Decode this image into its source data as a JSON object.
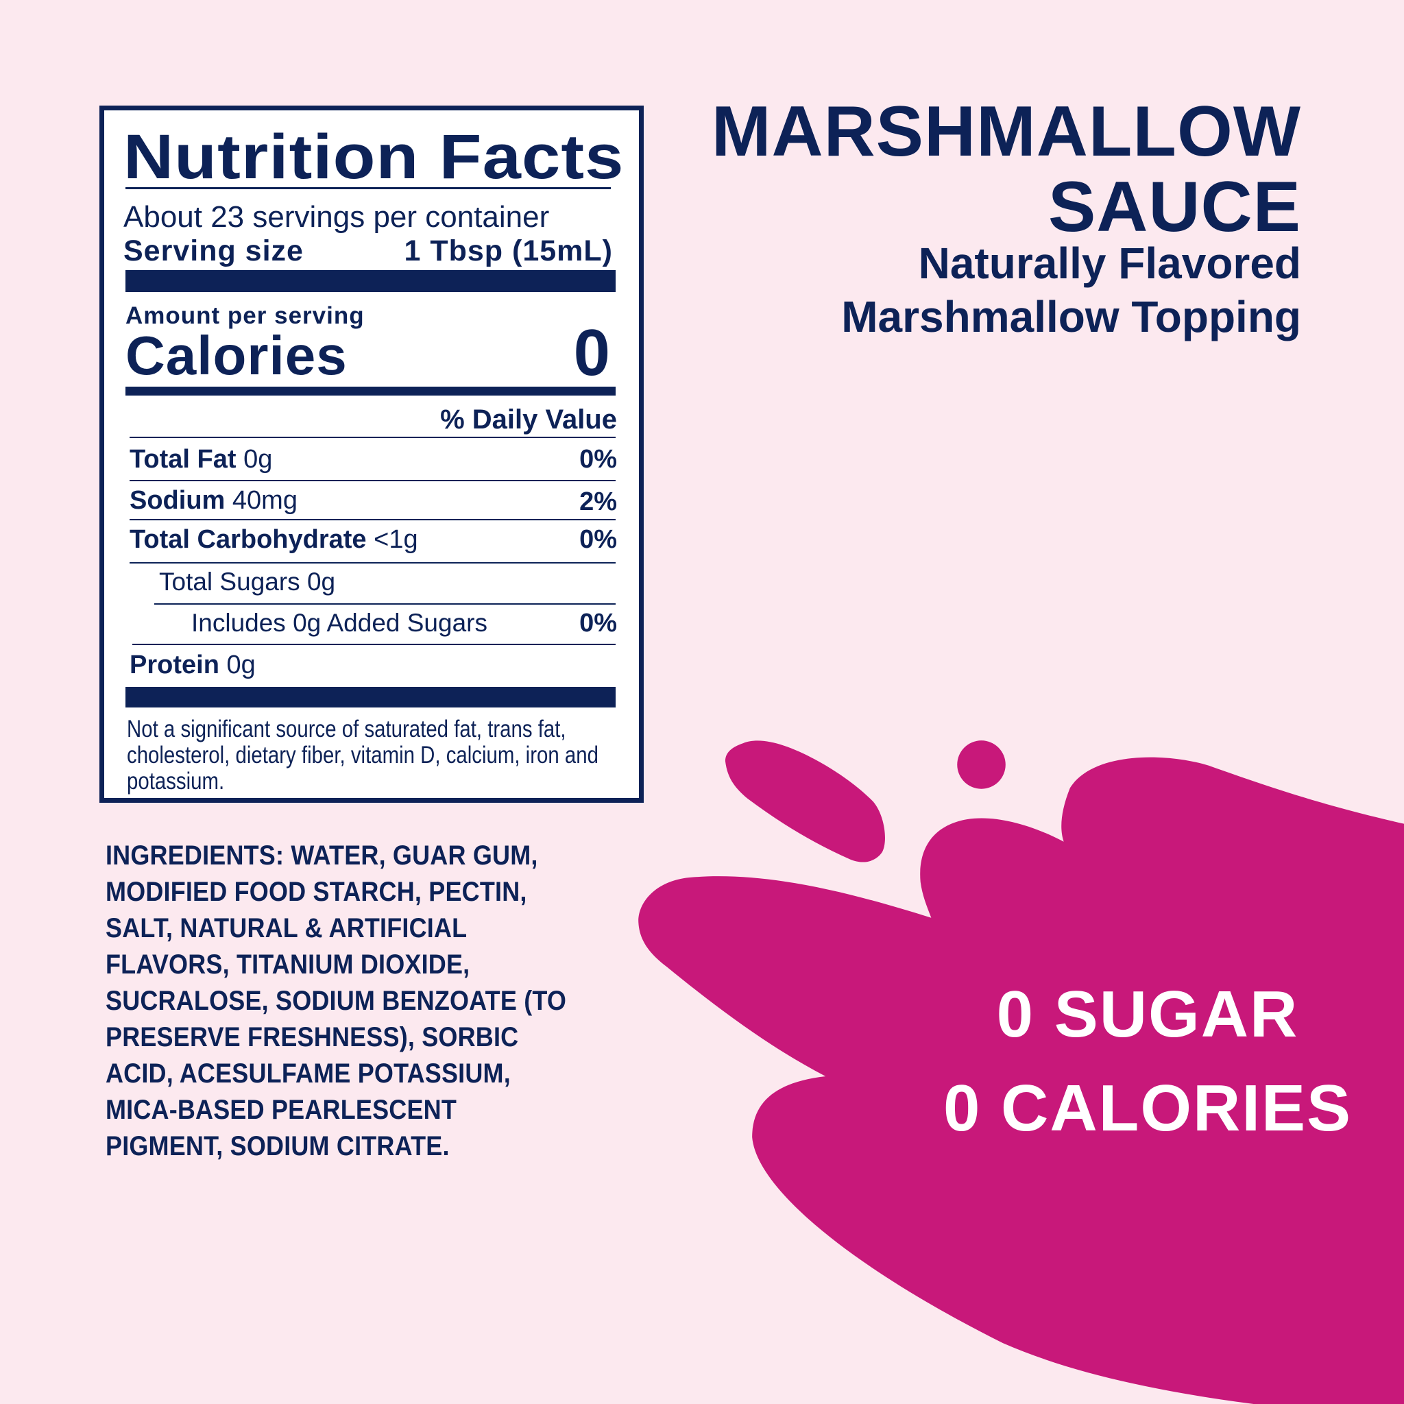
{
  "colors": {
    "background": "#fce9ef",
    "navy": "#0d2257",
    "magenta": "#c8187a",
    "white": "#ffffff"
  },
  "nutrition": {
    "title": "Nutrition Facts",
    "servings": "About 23 servings per container",
    "serving_size_label": "Serving size",
    "serving_size_value": "1 Tbsp (15mL)",
    "amount_per_serving": "Amount per serving",
    "calories_label": "Calories",
    "calories_value": "0",
    "daily_value_header": "% Daily Value",
    "rows": [
      {
        "name": "Total Fat",
        "amount": "0g",
        "dv": "0%"
      },
      {
        "name": "Sodium",
        "amount": "40mg",
        "dv": "2%"
      },
      {
        "name": "Total Carbohydrate",
        "amount": "<1g",
        "dv": "0%"
      },
      {
        "name": "",
        "amount": "Total Sugars 0g",
        "dv": ""
      },
      {
        "name": "",
        "amount": "Includes 0g Added Sugars",
        "dv": "0%"
      },
      {
        "name": "Protein",
        "amount": "0g",
        "dv": ""
      }
    ],
    "footnote": [
      "Not a significant source of saturated fat, trans fat,",
      "cholesterol, dietary fiber, vitamin D, calcium, iron and",
      "potassium."
    ]
  },
  "ingredients": [
    "INGREDIENTS: WATER, GUAR GUM,",
    "MODIFIED FOOD STARCH, PECTIN,",
    "SALT, NATURAL & ARTIFICIAL",
    "FLAVORS, TITANIUM DIOXIDE,",
    "SUCRALOSE, SODIUM BENZOATE (TO",
    "PRESERVE FRESHNESS), SORBIC",
    "ACID, ACESULFAME POTASSIUM,",
    "MICA-BASED PEARLESCENT",
    "PIGMENT, SODIUM CITRATE."
  ],
  "product": {
    "name_line1": "MARSHMALLOW",
    "name_line2": "SAUCE",
    "subtitle_line1": "Naturally Flavored",
    "subtitle_line2": "Marshmallow Topping"
  },
  "claims": [
    "0 SUGAR",
    "0 CALORIES"
  ]
}
